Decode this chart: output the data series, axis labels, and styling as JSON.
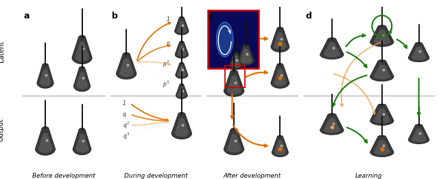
{
  "panel_labels": [
    "a",
    "b",
    "c",
    "d"
  ],
  "panel_titles": [
    "Before development",
    "During development",
    "After development",
    "Learning"
  ],
  "background_color": "#ffffff",
  "orange_dark": "#e07000",
  "orange_mid": "#f0a050",
  "orange_light": "#f8d8b0",
  "green_dark": "#1a7a10",
  "green_light": "#c8e8a0",
  "separator_color": "#aaaaaa",
  "red_color": "#cc0000",
  "latent_label": "Latent",
  "output_label": "Output",
  "neuron_dark": "#404040",
  "neuron_mid": "#606060",
  "neuron_light": "#888888"
}
